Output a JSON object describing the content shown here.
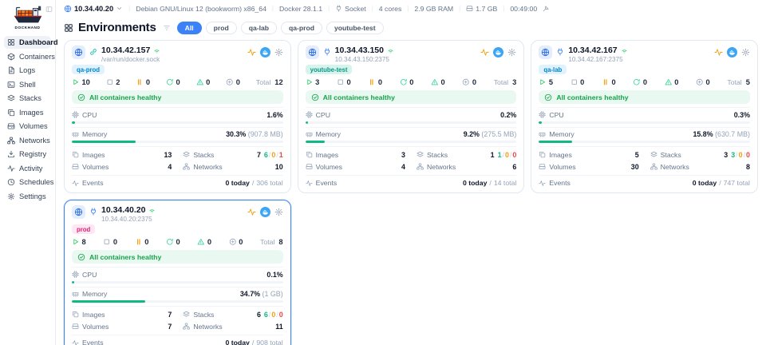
{
  "topbar": {
    "host": "10.34.40.20",
    "os": "Debian GNU/Linux 12 (bookworm) x86_64",
    "docker_version": "Docker 28.1.1",
    "connection": "Socket",
    "cores": "4 cores",
    "ram": "2.9 GB RAM",
    "disk": "1.7 GB",
    "time": "00:49:00"
  },
  "sidebar": {
    "brand": "DOCKHAND",
    "items": [
      {
        "label": "Dashboard",
        "icon": "dashboard",
        "active": true
      },
      {
        "label": "Containers",
        "icon": "containers",
        "active": false
      },
      {
        "label": "Logs",
        "icon": "logs",
        "active": false
      },
      {
        "label": "Shell",
        "icon": "shell",
        "active": false
      },
      {
        "label": "Stacks",
        "icon": "stacks",
        "active": false
      },
      {
        "label": "Images",
        "icon": "images",
        "active": false
      },
      {
        "label": "Volumes",
        "icon": "volumes",
        "active": false
      },
      {
        "label": "Networks",
        "icon": "networks",
        "active": false
      },
      {
        "label": "Registry",
        "icon": "registry",
        "active": false
      },
      {
        "label": "Activity",
        "icon": "activity",
        "active": false
      },
      {
        "label": "Schedules",
        "icon": "schedules",
        "active": false
      },
      {
        "label": "Settings",
        "icon": "settings",
        "active": false
      }
    ]
  },
  "page": {
    "title": "Environments",
    "filters": [
      {
        "label": "All",
        "active": true
      },
      {
        "label": "prod",
        "active": false
      },
      {
        "label": "qa-lab",
        "active": false
      },
      {
        "label": "qa-prod",
        "active": false
      },
      {
        "label": "youtube-test",
        "active": false
      }
    ]
  },
  "labels": {
    "total": "Total",
    "cpu": "CPU",
    "memory": "Memory",
    "images": "Images",
    "stacks": "Stacks",
    "volumes": "Volumes",
    "networks": "Networks",
    "events": "Events",
    "slash": "/"
  },
  "colors": {
    "accent": "#3b82f6",
    "green": "#10b981",
    "amber": "#f59e0b",
    "red": "#ef4444",
    "healthy_bg": "#e9f8f0",
    "pink_tag": "#db2777"
  },
  "icons": {
    "topbar": [
      "globe-icon",
      "chevron-down-icon",
      "socket-icon",
      "disk-icon",
      "telescope-icon"
    ],
    "card_header": [
      "globe-icon",
      "connection-type-icon",
      "signal-icon",
      "activity-pulse-icon",
      "docker-icon",
      "gear-icon"
    ],
    "stats": [
      "play-icon",
      "stop-icon",
      "pause-icon",
      "restart-icon",
      "alert-triangle-icon",
      "plus-circle-icon"
    ],
    "rows": [
      "check-circle-icon",
      "cpu-icon",
      "memory-icon",
      "images-icon",
      "stacks-icon",
      "volumes-icon",
      "networks-icon",
      "events-icon"
    ]
  },
  "cards": [
    {
      "title": "10.34.42.157",
      "subtitle": "/var/run/docker.sock",
      "tag": "qa-prod",
      "tag_style": "blue",
      "connection_type": "socket",
      "selected": false,
      "counts": {
        "running": "10",
        "stopped": "2",
        "paused": "0",
        "restarting": "0",
        "unhealthy": "0",
        "created": "0",
        "total": "12"
      },
      "health": "All containers healthy",
      "cpu": {
        "percent": "1.6%",
        "bar": 1.6
      },
      "memory": {
        "percent": "30.3%",
        "detail": "(907.8 MB)",
        "bar": 30.3
      },
      "images": "13",
      "stacks": {
        "total": "7",
        "running": "6",
        "partial": "0",
        "stopped": "1"
      },
      "volumes": "4",
      "networks": "10",
      "events": {
        "today": "0 today",
        "total": "306 total"
      }
    },
    {
      "title": "10.34.43.150",
      "subtitle": "10.34.43.150:2375",
      "tag": "youtube-test",
      "tag_style": "teal",
      "connection_type": "tcp",
      "selected": false,
      "counts": {
        "running": "3",
        "stopped": "0",
        "paused": "0",
        "restarting": "0",
        "unhealthy": "0",
        "created": "0",
        "total": "3"
      },
      "health": "All containers healthy",
      "cpu": {
        "percent": "0.2%",
        "bar": 0.2
      },
      "memory": {
        "percent": "9.2%",
        "detail": "(275.5 MB)",
        "bar": 9.2
      },
      "images": "3",
      "stacks": {
        "total": "1",
        "running": "1",
        "partial": "0",
        "stopped": "0"
      },
      "volumes": "4",
      "networks": "6",
      "events": {
        "today": "0 today",
        "total": "14 total"
      }
    },
    {
      "title": "10.34.42.167",
      "subtitle": "10.34.42.167:2375",
      "tag": "qa-lab",
      "tag_style": "blue",
      "connection_type": "tcp",
      "selected": false,
      "counts": {
        "running": "5",
        "stopped": "0",
        "paused": "0",
        "restarting": "0",
        "unhealthy": "0",
        "created": "0",
        "total": "5"
      },
      "health": "All containers healthy",
      "cpu": {
        "percent": "0.3%",
        "bar": 0.3
      },
      "memory": {
        "percent": "15.8%",
        "detail": "(630.7 MB)",
        "bar": 15.8
      },
      "images": "5",
      "stacks": {
        "total": "3",
        "running": "3",
        "partial": "0",
        "stopped": "0"
      },
      "volumes": "30",
      "networks": "8",
      "events": {
        "today": "0 today",
        "total": "747 total"
      }
    },
    {
      "title": "10.34.40.20",
      "subtitle": "10.34.40.20:2375",
      "tag": "prod",
      "tag_style": "pink",
      "connection_type": "tcp",
      "selected": true,
      "counts": {
        "running": "8",
        "stopped": "0",
        "paused": "0",
        "restarting": "0",
        "unhealthy": "0",
        "created": "0",
        "total": "8"
      },
      "health": "All containers healthy",
      "cpu": {
        "percent": "0.1%",
        "bar": 0.1
      },
      "memory": {
        "percent": "34.7%",
        "detail": "(1 GB)",
        "bar": 34.7
      },
      "images": "7",
      "stacks": {
        "total": "6",
        "running": "6",
        "partial": "0",
        "stopped": "0"
      },
      "volumes": "7",
      "networks": "11",
      "events": {
        "today": "0 today",
        "total": "908 total"
      }
    }
  ]
}
